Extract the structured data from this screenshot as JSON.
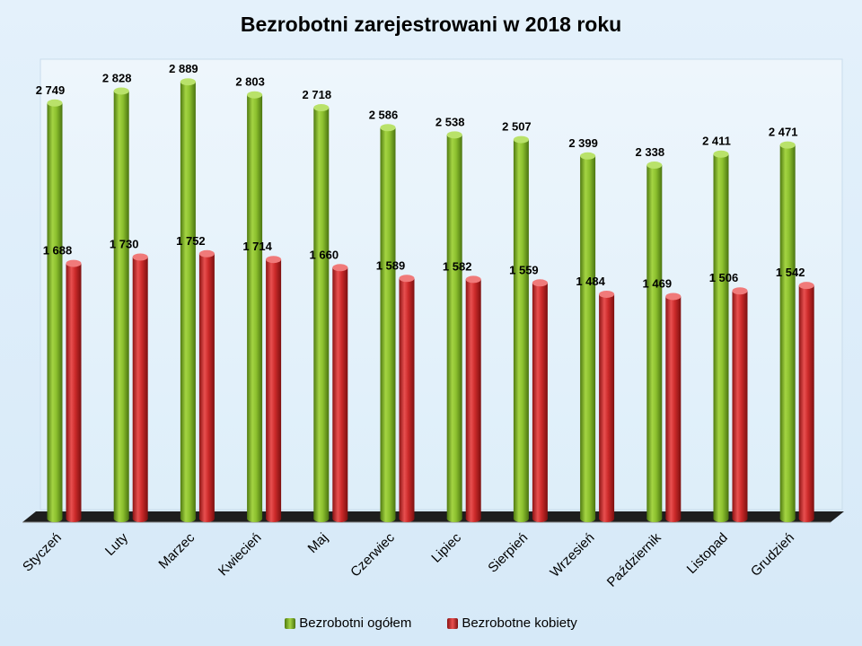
{
  "chart_data": {
    "type": "bar",
    "title": "Bezrobotni zarejestrowani w 2018 roku",
    "xlabel": "",
    "ylabel": "",
    "ylim": [
      0,
      3000
    ],
    "grid": false,
    "legend_position": "bottom",
    "categories": [
      "Styczeń",
      "Luty",
      "Marzec",
      "Kwiecień",
      "Maj",
      "Czerwiec",
      "Lipiec",
      "Sierpień",
      "Wrzesień",
      "Październik",
      "Listopad",
      "Grudzień"
    ],
    "series": [
      {
        "name": "Bezrobotni ogółem",
        "color": "#7fb226",
        "values": [
          2749,
          2828,
          2889,
          2803,
          2718,
          2586,
          2538,
          2507,
          2399,
          2338,
          2411,
          2471
        ],
        "labels": [
          "2 749",
          "2 828",
          "2 889",
          "2 803",
          "2 718",
          "2 586",
          "2 538",
          "2 507",
          "2 399",
          "2 338",
          "2 411",
          "2 471"
        ]
      },
      {
        "name": "Bezrobotne kobiety",
        "color": "#cc2a2a",
        "values": [
          1688,
          1730,
          1752,
          1714,
          1660,
          1589,
          1582,
          1559,
          1484,
          1469,
          1506,
          1542
        ],
        "labels": [
          "1 688",
          "1 730",
          "1 752",
          "1 714",
          "1 660",
          "1 589",
          "1 582",
          "1 559",
          "1 484",
          "1 469",
          "1 506",
          "1 542"
        ]
      }
    ]
  }
}
